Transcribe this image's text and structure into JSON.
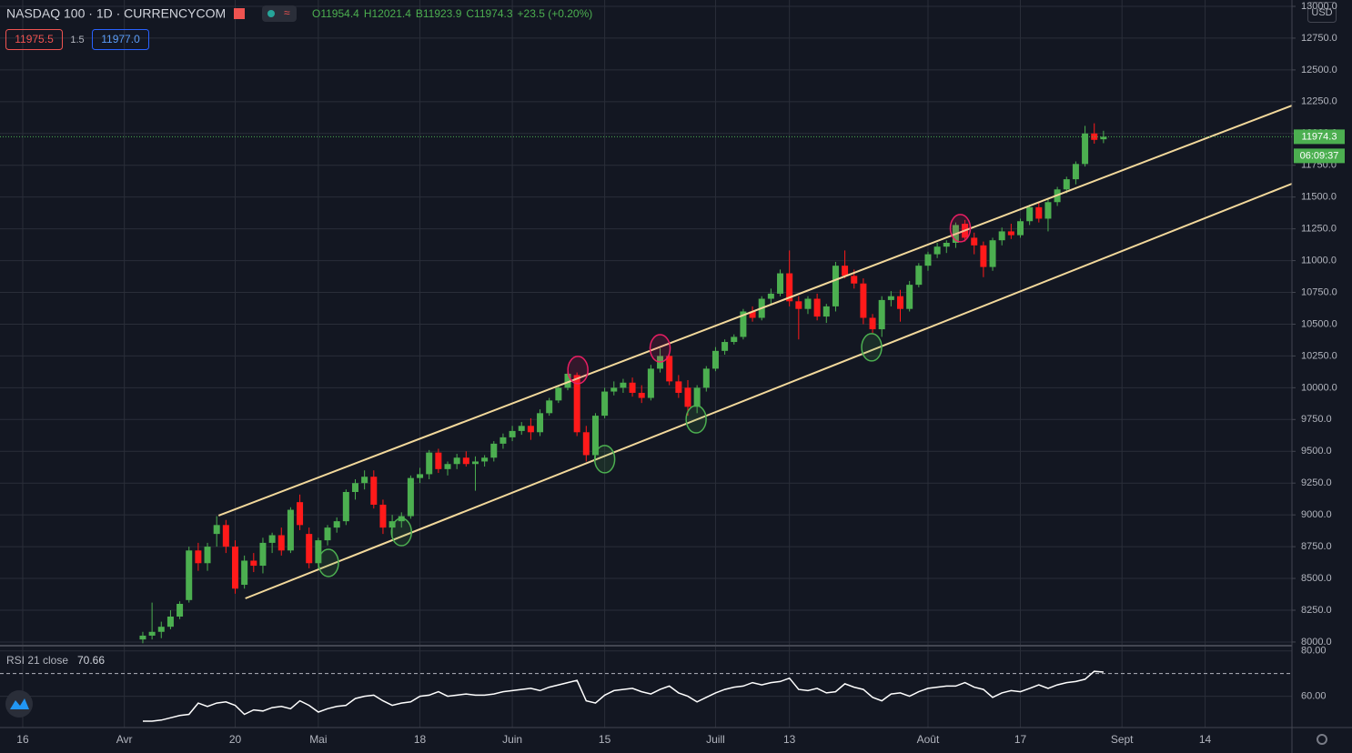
{
  "header": {
    "symbol": "NASDAQ 100 · 1D · CURRENCYCOM",
    "ohlc_legend": [
      "O11954.4",
      "H12021.4",
      "B11923.9",
      "C11974.3",
      "+23.5 (+0.20%)"
    ],
    "bid": "11975.5",
    "spread": "1.5",
    "ask": "11977.0",
    "currency": "USD",
    "countdown": "06:09:37"
  },
  "chart_data": {
    "type": "candlestick",
    "up_color": "#4caf50",
    "down_color": "#ff1a1a",
    "grid": true,
    "xlim": [
      -2.46,
      137.4
    ],
    "xticks": [
      {
        "value": 0,
        "label": "16"
      },
      {
        "value": 11,
        "label": "Avr"
      },
      {
        "value": 23,
        "label": "20"
      },
      {
        "value": 32,
        "label": "Mai"
      },
      {
        "value": 43,
        "label": "18"
      },
      {
        "value": 53,
        "label": "Juin"
      },
      {
        "value": 63,
        "label": "15"
      },
      {
        "value": 75,
        "label": "Juill"
      },
      {
        "value": 83,
        "label": "13"
      },
      {
        "value": 98,
        "label": "Août"
      },
      {
        "value": 108,
        "label": "17"
      },
      {
        "value": 119,
        "label": "Sept"
      },
      {
        "value": 128,
        "label": "14"
      }
    ],
    "ylim": [
      7971,
      13050
    ],
    "yticks": [
      {
        "value": 8000,
        "label": "8000.0"
      },
      {
        "value": 8250,
        "label": "8250.0"
      },
      {
        "value": 8500,
        "label": "8500.0"
      },
      {
        "value": 8750,
        "label": "8750.0"
      },
      {
        "value": 9000,
        "label": "9000.0"
      },
      {
        "value": 9250,
        "label": "9250.0"
      },
      {
        "value": 9500,
        "label": "9500.0"
      },
      {
        "value": 9750,
        "label": "9750.0"
      },
      {
        "value": 10000,
        "label": "10000.0"
      },
      {
        "value": 10250,
        "label": "10250.0"
      },
      {
        "value": 10500,
        "label": "10500.0"
      },
      {
        "value": 10750,
        "label": "10750.0"
      },
      {
        "value": 11000,
        "label": "11000.0"
      },
      {
        "value": 11250,
        "label": "11250.0"
      },
      {
        "value": 11500,
        "label": "11500.0"
      },
      {
        "value": 11750,
        "label": "11750.0"
      },
      {
        "value": 12000,
        "label": "12000.0"
      },
      {
        "value": 12250,
        "label": "12250.0"
      },
      {
        "value": 12500,
        "label": "12500.0"
      },
      {
        "value": 12750,
        "label": "12750.0"
      },
      {
        "value": 13000,
        "label": "13000.0"
      }
    ],
    "x": [
      13,
      14,
      15,
      16,
      17,
      18,
      19,
      20,
      21,
      22,
      23,
      24,
      25,
      26,
      27,
      28,
      29,
      30,
      31,
      32,
      33,
      34,
      35,
      36,
      37,
      38,
      39,
      40,
      41,
      42,
      43,
      44,
      45,
      46,
      47,
      48,
      49,
      50,
      51,
      52,
      53,
      54,
      55,
      56,
      57,
      58,
      59,
      60,
      61,
      62,
      63,
      64,
      65,
      66,
      67,
      68,
      69,
      70,
      71,
      72,
      73,
      74,
      75,
      76,
      77,
      78,
      79,
      80,
      81,
      82,
      83,
      84,
      85,
      86,
      87,
      88,
      89,
      90,
      91,
      92,
      93,
      94,
      95,
      96,
      97,
      98,
      99,
      100,
      101,
      102,
      103,
      104,
      105,
      106,
      107,
      108,
      109,
      110,
      111,
      112,
      113,
      114,
      115,
      116,
      117
    ],
    "ohlc": [
      [
        8020,
        8080,
        7990,
        8050
      ],
      [
        8050,
        8310,
        8020,
        8080
      ],
      [
        8080,
        8160,
        8030,
        8120
      ],
      [
        8120,
        8250,
        8100,
        8200
      ],
      [
        8200,
        8320,
        8180,
        8300
      ],
      [
        8330,
        8750,
        8310,
        8720
      ],
      [
        8720,
        8780,
        8560,
        8620
      ],
      [
        8620,
        8780,
        8560,
        8750
      ],
      [
        8850,
        8990,
        8750,
        8920
      ],
      [
        8920,
        8960,
        8700,
        8750
      ],
      [
        8750,
        8800,
        8380,
        8420
      ],
      [
        8450,
        8680,
        8420,
        8640
      ],
      [
        8640,
        8700,
        8550,
        8600
      ],
      [
        8600,
        8820,
        8540,
        8780
      ],
      [
        8780,
        8860,
        8700,
        8840
      ],
      [
        8840,
        8900,
        8680,
        8720
      ],
      [
        8720,
        9060,
        8700,
        9040
      ],
      [
        9100,
        9160,
        8880,
        8920
      ],
      [
        8850,
        8900,
        8580,
        8620
      ],
      [
        8620,
        8820,
        8580,
        8800
      ],
      [
        8800,
        8920,
        8760,
        8900
      ],
      [
        8900,
        8980,
        8860,
        8950
      ],
      [
        8950,
        9200,
        8920,
        9180
      ],
      [
        9180,
        9280,
        9120,
        9250
      ],
      [
        9250,
        9350,
        9200,
        9300
      ],
      [
        9300,
        9350,
        9050,
        9080
      ],
      [
        9080,
        9120,
        8850,
        8900
      ],
      [
        8900,
        9000,
        8820,
        8950
      ],
      [
        8950,
        9020,
        8900,
        8990
      ],
      [
        8990,
        9310,
        8970,
        9290
      ],
      [
        9290,
        9370,
        9250,
        9320
      ],
      [
        9320,
        9510,
        9280,
        9490
      ],
      [
        9490,
        9520,
        9330,
        9360
      ],
      [
        9360,
        9420,
        9310,
        9400
      ],
      [
        9400,
        9480,
        9360,
        9450
      ],
      [
        9450,
        9500,
        9380,
        9400
      ],
      [
        9400,
        9460,
        9190,
        9420
      ],
      [
        9420,
        9470,
        9380,
        9450
      ],
      [
        9450,
        9580,
        9420,
        9560
      ],
      [
        9560,
        9640,
        9520,
        9610
      ],
      [
        9610,
        9700,
        9580,
        9660
      ],
      [
        9660,
        9730,
        9630,
        9700
      ],
      [
        9700,
        9760,
        9590,
        9650
      ],
      [
        9650,
        9830,
        9620,
        9800
      ],
      [
        9800,
        9920,
        9780,
        9900
      ],
      [
        9900,
        10020,
        9880,
        10000
      ],
      [
        10000,
        10150,
        9980,
        10110
      ],
      [
        10100,
        10120,
        9620,
        9650
      ],
      [
        9650,
        9700,
        9420,
        9470
      ],
      [
        9470,
        9800,
        9430,
        9780
      ],
      [
        9780,
        10000,
        9760,
        9970
      ],
      [
        9970,
        10050,
        9940,
        10000
      ],
      [
        10000,
        10070,
        9960,
        10040
      ],
      [
        10040,
        10080,
        9930,
        9960
      ],
      [
        9960,
        10020,
        9880,
        9920
      ],
      [
        9920,
        10180,
        9900,
        10150
      ],
      [
        10150,
        10310,
        10120,
        10250
      ],
      [
        10250,
        10260,
        10020,
        10050
      ],
      [
        10050,
        10100,
        9920,
        9960
      ],
      [
        10000,
        10060,
        9780,
        9850
      ],
      [
        9850,
        10020,
        9800,
        10000
      ],
      [
        10000,
        10170,
        9970,
        10150
      ],
      [
        10150,
        10320,
        10130,
        10290
      ],
      [
        10290,
        10380,
        10260,
        10360
      ],
      [
        10360,
        10420,
        10340,
        10400
      ],
      [
        10400,
        10620,
        10380,
        10600
      ],
      [
        10600,
        10640,
        10520,
        10550
      ],
      [
        10550,
        10720,
        10530,
        10700
      ],
      [
        10700,
        10780,
        10660,
        10740
      ],
      [
        10740,
        10930,
        10720,
        10900
      ],
      [
        10900,
        11080,
        10640,
        10680
      ],
      [
        10680,
        10720,
        10380,
        10620
      ],
      [
        10620,
        10720,
        10580,
        10700
      ],
      [
        10700,
        10740,
        10530,
        10560
      ],
      [
        10560,
        10660,
        10510,
        10640
      ],
      [
        10640,
        10990,
        10600,
        10960
      ],
      [
        10960,
        11080,
        10860,
        10880
      ],
      [
        10880,
        10930,
        10780,
        10820
      ],
      [
        10820,
        10860,
        10500,
        10550
      ],
      [
        10550,
        10580,
        10430,
        10460
      ],
      [
        10460,
        10720,
        10400,
        10690
      ],
      [
        10690,
        10760,
        10640,
        10720
      ],
      [
        10720,
        10770,
        10520,
        10620
      ],
      [
        10620,
        10840,
        10600,
        10810
      ],
      [
        10810,
        10980,
        10790,
        10960
      ],
      [
        10960,
        11070,
        10920,
        11050
      ],
      [
        11050,
        11140,
        11020,
        11110
      ],
      [
        11110,
        11160,
        11060,
        11140
      ],
      [
        11140,
        11300,
        11100,
        11280
      ],
      [
        11290,
        11320,
        11150,
        11180
      ],
      [
        11180,
        11220,
        11050,
        11120
      ],
      [
        11120,
        11150,
        10870,
        10950
      ],
      [
        10950,
        11180,
        10920,
        11160
      ],
      [
        11160,
        11260,
        11120,
        11230
      ],
      [
        11230,
        11290,
        11170,
        11200
      ],
      [
        11200,
        11330,
        11180,
        11310
      ],
      [
        11310,
        11440,
        11280,
        11420
      ],
      [
        11420,
        11460,
        11300,
        11330
      ],
      [
        11330,
        11490,
        11230,
        11460
      ],
      [
        11460,
        11580,
        11430,
        11560
      ],
      [
        11560,
        11660,
        11530,
        11640
      ],
      [
        11640,
        11780,
        11600,
        11760
      ],
      [
        11760,
        12060,
        11740,
        12000
      ],
      [
        12000,
        12080,
        11920,
        11950
      ],
      [
        11954.4,
        12021.4,
        11923.9,
        11974.3
      ]
    ],
    "trendlines": [
      {
        "x": [
          21.2,
          137.4
        ],
        "y": [
          8994,
          12220
        ]
      },
      {
        "x": [
          24.1,
          137.4
        ],
        "y": [
          8343,
          11605
        ]
      }
    ],
    "trendline_color": "#f2d89b",
    "highlights": [
      {
        "x": 33.1,
        "y": 8622,
        "color": "#4caf50"
      },
      {
        "x": 41,
        "y": 8865,
        "color": "#4caf50"
      },
      {
        "x": 63,
        "y": 9438,
        "color": "#4caf50"
      },
      {
        "x": 72.9,
        "y": 9752,
        "color": "#4caf50"
      },
      {
        "x": 91.9,
        "y": 10318,
        "color": "#4caf50"
      },
      {
        "x": 60.1,
        "y": 10139,
        "color": "#e91e63"
      },
      {
        "x": 69,
        "y": 10310,
        "color": "#e91e63"
      },
      {
        "x": 101.5,
        "y": 11255,
        "color": "#e91e63"
      }
    ],
    "rsi": {
      "name": "RSI 21 close",
      "color": "#ffffff",
      "ylim": [
        46.2,
        81.5
      ],
      "yticks": [
        {
          "value": 60,
          "label": "60.00"
        },
        {
          "value": 80,
          "label": "80.00"
        }
      ],
      "band": 70,
      "values": [
        49,
        49,
        49.5,
        50.5,
        51.5,
        52,
        57,
        55.5,
        57,
        57.5,
        56,
        52,
        54,
        53.5,
        55,
        55.5,
        54.5,
        58,
        56,
        53,
        54.5,
        55.5,
        56,
        59,
        60,
        60.5,
        58,
        56,
        57,
        57.5,
        60,
        60.5,
        62,
        60,
        60.5,
        61,
        60.5,
        60.5,
        61,
        62,
        62.5,
        63,
        63.5,
        62.5,
        64,
        65,
        66,
        67,
        58,
        57,
        60.5,
        62.5,
        63,
        63.5,
        62,
        61,
        63,
        64.5,
        61.5,
        60,
        57.5,
        59.5,
        61.5,
        63,
        64,
        64.5,
        66,
        65,
        66,
        66.5,
        68,
        63,
        62.5,
        63.5,
        61.5,
        62,
        65.5,
        64,
        63,
        59.5,
        58,
        61,
        61.5,
        60,
        62,
        63.5,
        64,
        64.5,
        64.5,
        66,
        64,
        63,
        59.5,
        61.5,
        62.5,
        62,
        63.5,
        65,
        63.5,
        65,
        66,
        66.5,
        67.5,
        71,
        70.66
      ]
    }
  }
}
